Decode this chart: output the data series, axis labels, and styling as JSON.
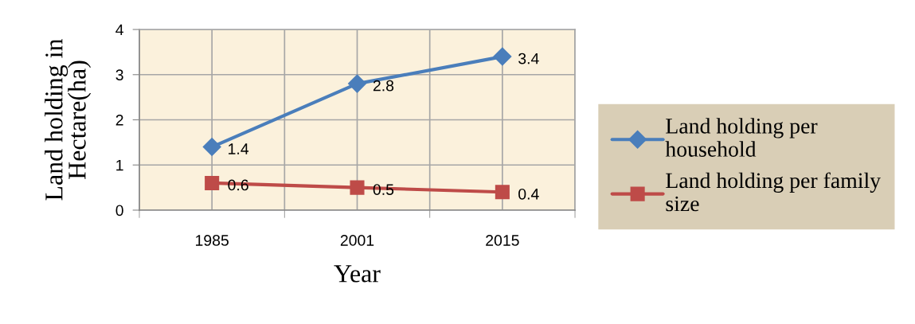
{
  "chart_data": {
    "type": "line",
    "xlabel": "Year",
    "ylabel": "Land holding in Hectare(ha)",
    "categories": [
      "1985",
      "2001",
      "2015"
    ],
    "series": [
      {
        "name": "Land holding per household",
        "color": "#4a7ebb",
        "marker": "diamond",
        "values": [
          1.4,
          2.8,
          3.4
        ]
      },
      {
        "name": "Land holding per family size",
        "color": "#be4b48",
        "marker": "square",
        "values": [
          0.6,
          0.5,
          0.4
        ]
      }
    ],
    "ylim": [
      0,
      4
    ],
    "yticks": [
      0,
      1,
      2,
      3,
      4
    ],
    "grid": true,
    "legend": "right",
    "data_labels": true,
    "line_style": "solid"
  }
}
